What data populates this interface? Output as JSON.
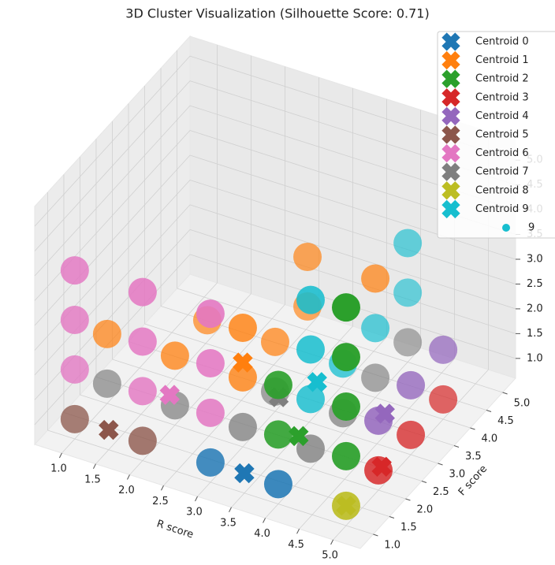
{
  "chart_data": {
    "type": "scatter3d",
    "title": "3D Cluster Visualization (Silhouette Score: 0.71)",
    "xlabel": "R score",
    "ylabel": "F score",
    "xlim": [
      0.6,
      5.4
    ],
    "ylim": [
      0.6,
      5.4
    ],
    "zlim": [
      0.6,
      5.4
    ],
    "xticks": [
      {
        "value": 1,
        "label": "1.0"
      },
      1.5,
      {
        "value": 2,
        "label": "2.0"
      },
      2.5,
      {
        "value": 3,
        "label": "3.0"
      },
      3.5,
      {
        "value": 4,
        "label": "4.0"
      },
      4.5,
      {
        "value": 5,
        "label": "5.0"
      }
    ],
    "yticks": [
      {
        "value": 1,
        "label": "1.0"
      },
      1.5,
      {
        "value": 2,
        "label": "2.0"
      },
      2.5,
      {
        "value": 3,
        "label": "3.0"
      },
      3.5,
      {
        "value": 4,
        "label": "4.0"
      },
      4.5,
      {
        "value": 5,
        "label": "5.0"
      }
    ],
    "zticks": [
      {
        "value": 1,
        "label": "1.0"
      },
      1.5,
      {
        "value": 2,
        "label": "2.0"
      },
      2.5,
      {
        "value": 3,
        "label": "3.0"
      },
      3.5,
      {
        "value": 4,
        "label": "4.0"
      },
      4.5,
      {
        "value": 5,
        "label": "5.0"
      }
    ],
    "grid": true,
    "legend": "upper right",
    "series": [
      {
        "centroid_name": "Centroid 0",
        "color": "#1f77b4",
        "x": [
          3,
          4
        ],
        "y": [
          1,
          1
        ],
        "z": [
          1,
          1
        ],
        "centroid": {
          "x": 3.5,
          "y": 1,
          "z": 1
        }
      },
      {
        "centroid_name": "Centroid 1",
        "color": "#ff7f0e",
        "x": [
          1,
          2,
          3,
          3,
          3,
          2,
          3,
          3,
          4
        ],
        "y": [
          2,
          2,
          2,
          3,
          2,
          3,
          4,
          4,
          4
        ],
        "z": [
          2,
          2,
          2,
          2,
          3,
          2,
          2,
          3,
          3
        ],
        "centroid": {
          "x": 3,
          "y": 2,
          "z": 2.3
        }
      },
      {
        "centroid_name": "Centroid 2",
        "color": "#2ca02c",
        "x": [
          4,
          4,
          5,
          5,
          5,
          5
        ],
        "y": [
          1,
          1,
          1,
          1,
          1,
          1
        ],
        "z": [
          2,
          3,
          2,
          3,
          4,
          5
        ],
        "centroid": {
          "x": 4.3,
          "y": 1,
          "z": 2.1
        }
      },
      {
        "centroid_name": "Centroid 3",
        "color": "#d62728",
        "x": [
          5,
          5,
          5
        ],
        "y": [
          2,
          3,
          4
        ],
        "z": [
          1,
          1,
          1
        ],
        "centroid": {
          "x": 5,
          "y": 2.1,
          "z": 1
        }
      },
      {
        "centroid_name": "Centroid 4",
        "color": "#9467bd",
        "x": [
          5,
          5,
          5
        ],
        "y": [
          2,
          3,
          4
        ],
        "z": [
          2,
          2,
          2
        ],
        "centroid": {
          "x": 5,
          "y": 2.2,
          "z": 2
        }
      },
      {
        "centroid_name": "Centroid 5",
        "color": "#8c564b",
        "x": [
          1,
          2
        ],
        "y": [
          1,
          1
        ],
        "z": [
          1,
          1
        ],
        "centroid": {
          "x": 1.5,
          "y": 1,
          "z": 1
        }
      },
      {
        "centroid_name": "Centroid 6",
        "color": "#e377c2",
        "x": [
          1,
          1,
          1,
          2,
          2,
          2,
          3,
          3,
          3
        ],
        "y": [
          1,
          1,
          1,
          1,
          1,
          1,
          1,
          1,
          1
        ],
        "z": [
          2,
          3,
          4,
          2,
          3,
          4,
          2,
          3,
          4
        ],
        "centroid": {
          "x": 2.4,
          "y": 1,
          "z": 2.1
        }
      },
      {
        "centroid_name": "Centroid 7",
        "color": "#7f7f7f",
        "x": [
          1,
          2,
          3,
          4,
          3,
          4,
          4,
          4
        ],
        "y": [
          2,
          2,
          2,
          2,
          3,
          3,
          4,
          5
        ],
        "z": [
          1,
          1,
          1,
          1,
          1,
          1,
          1,
          1
        ],
        "centroid": {
          "x": 3.1,
          "y": 2.9,
          "z": 1
        }
      },
      {
        "centroid_name": "Centroid 8",
        "color": "#bcbd22",
        "x": [
          5
        ],
        "y": [
          1
        ],
        "z": [
          1
        ],
        "centroid": {
          "x": 5,
          "y": 1,
          "z": 1
        }
      },
      {
        "centroid_name": "Centroid 9",
        "name": "9",
        "color": "#17becf",
        "x": [
          4,
          4,
          4,
          4,
          4,
          4,
          4
        ],
        "y": [
          2,
          2,
          2,
          3,
          4,
          5,
          5
        ],
        "z": [
          2,
          3,
          4,
          2,
          2,
          2,
          3
        ],
        "centroid": {
          "x": 4,
          "y": 2.2,
          "z": 2.2
        }
      }
    ]
  }
}
